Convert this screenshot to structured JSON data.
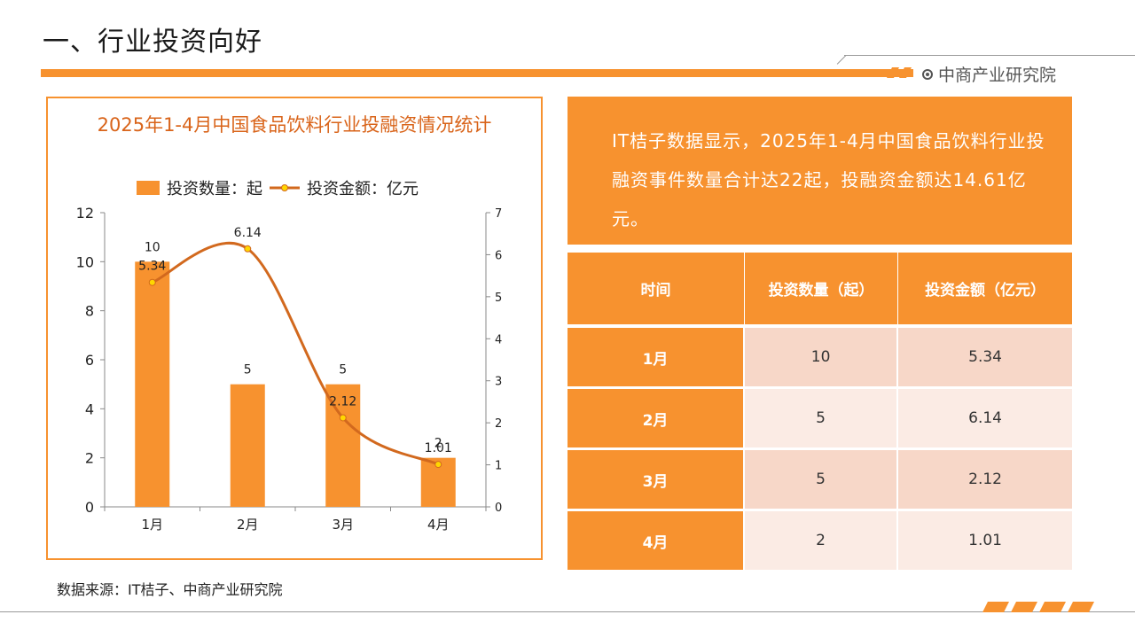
{
  "header": {
    "title": "一、行业投资向好",
    "brand": "中商产业研究院"
  },
  "chart_data": {
    "type": "bar",
    "title": "2025年1-4月中国食品饮料行业投融资情况统计",
    "categories": [
      "1月",
      "2月",
      "3月",
      "4月"
    ],
    "series": [
      {
        "name": "投资数量：起",
        "kind": "bar",
        "axis": "left",
        "values": [
          10,
          5,
          5,
          2
        ],
        "labels": [
          "10",
          "5",
          "5",
          "2"
        ]
      },
      {
        "name": "投资金额：亿元",
        "kind": "line",
        "axis": "right",
        "values": [
          5.34,
          6.14,
          2.12,
          1.01
        ],
        "labels": [
          "5.34",
          "6.14",
          "2.12",
          "1.01"
        ]
      }
    ],
    "y_left": {
      "min": 0,
      "max": 12,
      "ticks": [
        "0",
        "2",
        "4",
        "6",
        "8",
        "10",
        "12"
      ]
    },
    "y_right": {
      "min": 0,
      "max": 7,
      "ticks": [
        "0",
        "1",
        "2",
        "3",
        "4",
        "5",
        "6",
        "7"
      ]
    },
    "legend_position": "top",
    "grid": false,
    "colors": {
      "bar": "#f7922f",
      "line": "#d2691e",
      "marker_fill": "#ffd700"
    }
  },
  "info": {
    "text": "IT桔子数据显示，2025年1-4月中国食品饮料行业投融资事件数量合计达22起，投融资金额达14.61亿元。"
  },
  "table": {
    "headers": [
      "时间",
      "投资数量（起）",
      "投资金额（亿元）"
    ],
    "rows": [
      [
        "1月",
        "10",
        "5.34"
      ],
      [
        "2月",
        "5",
        "6.14"
      ],
      [
        "3月",
        "5",
        "2.12"
      ],
      [
        "4月",
        "2",
        "1.01"
      ]
    ]
  },
  "footer": {
    "source": "数据来源：IT桔子、中商产业研究院"
  },
  "colors": {
    "accent": "#f7922f"
  }
}
